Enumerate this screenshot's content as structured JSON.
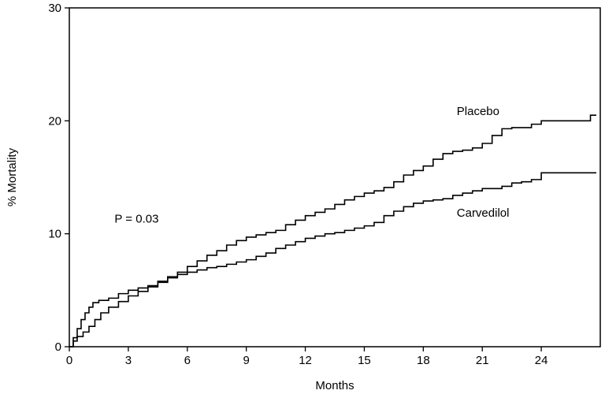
{
  "chart_data": {
    "type": "line",
    "title": "",
    "xlabel": "Months",
    "ylabel": "% Mortality",
    "xlim": [
      0,
      27
    ],
    "ylim": [
      0,
      30
    ],
    "x_ticks": [
      0,
      3,
      6,
      9,
      12,
      15,
      18,
      21,
      24
    ],
    "y_ticks": [
      0,
      10,
      20,
      30
    ],
    "x_tick_labels": [
      "0",
      "3",
      "6",
      "9",
      "12",
      "15",
      "18",
      "21",
      "24"
    ],
    "y_tick_labels": [
      "0",
      "10",
      "20",
      "30"
    ],
    "grid": false,
    "legend": "none",
    "series": [
      {
        "name": "Placebo",
        "step": true,
        "x": [
          0,
          0.2,
          0.4,
          0.6,
          0.8,
          1.0,
          1.2,
          1.5,
          2.0,
          2.5,
          3.0,
          3.5,
          4.0,
          4.5,
          5.0,
          5.5,
          6.0,
          6.5,
          7.0,
          7.5,
          8.0,
          8.5,
          9.0,
          9.5,
          10.0,
          10.5,
          11.0,
          11.5,
          12.0,
          12.5,
          13.0,
          13.5,
          14.0,
          14.5,
          15.0,
          15.5,
          16.0,
          16.5,
          17.0,
          17.5,
          18.0,
          18.5,
          19.0,
          19.5,
          20.0,
          20.5,
          21.0,
          21.5,
          22.0,
          22.5,
          23.0,
          23.5,
          24.0,
          24.5,
          25.0,
          25.5,
          26.0,
          26.5,
          26.8
        ],
        "values": [
          0,
          0.8,
          1.6,
          2.4,
          3.0,
          3.5,
          3.9,
          4.1,
          4.3,
          4.7,
          5.0,
          5.2,
          5.4,
          5.8,
          6.2,
          6.6,
          7.1,
          7.6,
          8.1,
          8.5,
          9.0,
          9.4,
          9.7,
          9.9,
          10.1,
          10.3,
          10.8,
          11.2,
          11.6,
          11.9,
          12.2,
          12.6,
          13.0,
          13.3,
          13.6,
          13.8,
          14.1,
          14.6,
          15.2,
          15.6,
          16.0,
          16.6,
          17.1,
          17.3,
          17.4,
          17.6,
          18.0,
          18.7,
          19.3,
          19.4,
          19.4,
          19.7,
          20.0,
          20.0,
          20.0,
          20.0,
          20.0,
          20.5,
          20.5
        ]
      },
      {
        "name": "Carvedilol",
        "step": true,
        "x": [
          0,
          0.2,
          0.4,
          0.7,
          1.0,
          1.3,
          1.6,
          2.0,
          2.5,
          3.0,
          3.5,
          4.0,
          4.5,
          5.0,
          5.5,
          6.0,
          6.5,
          7.0,
          7.5,
          8.0,
          8.5,
          9.0,
          9.5,
          10.0,
          10.5,
          11.0,
          11.5,
          12.0,
          12.5,
          13.0,
          13.5,
          14.0,
          14.5,
          15.0,
          15.5,
          16.0,
          16.5,
          17.0,
          17.5,
          18.0,
          18.5,
          19.0,
          19.5,
          20.0,
          20.5,
          21.0,
          21.5,
          22.0,
          22.5,
          23.0,
          23.5,
          24.0,
          25.0,
          26.0,
          26.8
        ],
        "values": [
          0,
          0.5,
          0.9,
          1.3,
          1.8,
          2.4,
          3.0,
          3.5,
          4.0,
          4.5,
          4.9,
          5.3,
          5.7,
          6.1,
          6.4,
          6.6,
          6.8,
          7.0,
          7.1,
          7.3,
          7.5,
          7.7,
          8.0,
          8.3,
          8.7,
          9.0,
          9.3,
          9.6,
          9.8,
          10.0,
          10.1,
          10.3,
          10.5,
          10.7,
          11.0,
          11.6,
          12.0,
          12.4,
          12.7,
          12.9,
          13.0,
          13.1,
          13.4,
          13.6,
          13.8,
          14.0,
          14.0,
          14.2,
          14.5,
          14.6,
          14.8,
          15.4,
          15.4,
          15.4,
          15.4
        ]
      }
    ],
    "annotations": [
      {
        "text": "P = 0.03",
        "x": 2.3,
        "y": 11.0
      },
      {
        "text": "Placebo",
        "x": 19.7,
        "y": 20.5
      },
      {
        "text": "Carvedilol",
        "x": 19.7,
        "y": 11.5
      }
    ]
  }
}
